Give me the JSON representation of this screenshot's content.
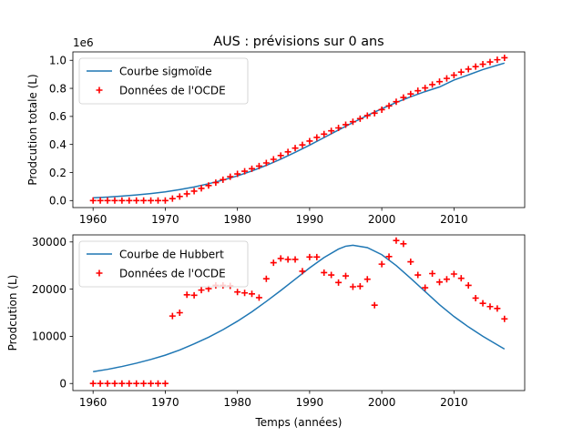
{
  "figure": {
    "title": "AUS : prévisions sur 0 ans",
    "xlabel": "Temps (années)"
  },
  "chart_data": [
    {
      "type": "line",
      "title": "AUS : prévisions sur 0 ans",
      "xlabel": "",
      "ylabel": "Prodcution totale (L)",
      "y_offset_label": "1e6",
      "xlim": [
        1957.2,
        2019.8
      ],
      "ylim": [
        -0.05,
        1.06
      ],
      "x_ticks": [
        1960,
        1970,
        1980,
        1990,
        2000,
        2010
      ],
      "x_tick_labels": [
        "1960",
        "1970",
        "1980",
        "1990",
        "2000",
        "2010"
      ],
      "y_ticks": [
        0.0,
        0.2,
        0.4,
        0.6,
        0.8,
        1.0
      ],
      "y_tick_labels": [
        "0.0",
        "0.2",
        "0.4",
        "0.6",
        "0.8",
        "1.0"
      ],
      "grid": false,
      "legend_position": "top-left",
      "series": [
        {
          "name": "Courbe sigmoïde",
          "kind": "line",
          "color": "#1f77b4",
          "x": [
            1960,
            1962,
            1964,
            1966,
            1968,
            1970,
            1972,
            1974,
            1976,
            1978,
            1980,
            1982,
            1984,
            1986,
            1988,
            1990,
            1992,
            1994,
            1996,
            1998,
            2000,
            2002,
            2004,
            2006,
            2008,
            2010,
            2012,
            2014,
            2016,
            2017
          ],
          "y": [
            0.02,
            0.025,
            0.032,
            0.04,
            0.05,
            0.062,
            0.078,
            0.097,
            0.12,
            0.146,
            0.176,
            0.211,
            0.251,
            0.295,
            0.344,
            0.395,
            0.449,
            0.503,
            0.556,
            0.607,
            0.655,
            0.699,
            0.74,
            0.777,
            0.81,
            0.859,
            0.896,
            0.934,
            0.965,
            0.98
          ]
        },
        {
          "name": "Données de l'OCDE",
          "kind": "scatter",
          "marker": "+",
          "color": "#ff0000",
          "x": [
            1960,
            1961,
            1962,
            1963,
            1964,
            1965,
            1966,
            1967,
            1968,
            1969,
            1970,
            1971,
            1972,
            1973,
            1974,
            1975,
            1976,
            1977,
            1978,
            1979,
            1980,
            1981,
            1982,
            1983,
            1984,
            1985,
            1986,
            1987,
            1988,
            1989,
            1990,
            1991,
            1992,
            1993,
            1994,
            1995,
            1996,
            1997,
            1998,
            1999,
            2000,
            2001,
            2002,
            2003,
            2004,
            2005,
            2006,
            2007,
            2008,
            2009,
            2010,
            2011,
            2012,
            2013,
            2014,
            2015,
            2016,
            2017
          ],
          "y": [
            0.0,
            0.0,
            0.0,
            0.0,
            0.0,
            0.0,
            0.0,
            0.0,
            0.0,
            0.0,
            0.0,
            0.014,
            0.029,
            0.048,
            0.067,
            0.087,
            0.107,
            0.128,
            0.149,
            0.17,
            0.19,
            0.209,
            0.227,
            0.246,
            0.268,
            0.294,
            0.321,
            0.347,
            0.374,
            0.397,
            0.424,
            0.45,
            0.474,
            0.497,
            0.518,
            0.541,
            0.562,
            0.584,
            0.606,
            0.623,
            0.648,
            0.675,
            0.705,
            0.735,
            0.76,
            0.783,
            0.803,
            0.827,
            0.848,
            0.871,
            0.894,
            0.916,
            0.937,
            0.955,
            0.972,
            0.988,
            1.004,
            1.018
          ]
        }
      ]
    },
    {
      "type": "line",
      "title": "",
      "xlabel": "Temps (années)",
      "ylabel": "Prodcution (L)",
      "xlim": [
        1957.2,
        2019.8
      ],
      "ylim": [
        -1500,
        31500
      ],
      "x_ticks": [
        1960,
        1970,
        1980,
        1990,
        2000,
        2010
      ],
      "x_tick_labels": [
        "1960",
        "1970",
        "1980",
        "1990",
        "2000",
        "2010"
      ],
      "y_ticks": [
        0,
        10000,
        20000,
        30000
      ],
      "y_tick_labels": [
        "0",
        "10000",
        "20000",
        "30000"
      ],
      "grid": false,
      "legend_position": "top-left",
      "series": [
        {
          "name": "Courbe de Hubbert",
          "kind": "line",
          "color": "#1f77b4",
          "x": [
            1960,
            1962,
            1964,
            1966,
            1968,
            1970,
            1972,
            1974,
            1976,
            1978,
            1980,
            1982,
            1984,
            1986,
            1988,
            1990,
            1992,
            1994,
            1995,
            1996,
            1998,
            2000,
            2002,
            2004,
            2006,
            2008,
            2010,
            2012,
            2014,
            2016,
            2017
          ],
          "y": [
            2500,
            3000,
            3600,
            4300,
            5100,
            6000,
            7100,
            8400,
            9800,
            11400,
            13200,
            15200,
            17400,
            19700,
            22100,
            24500,
            26700,
            28500,
            29100,
            29300,
            28800,
            27300,
            25000,
            22300,
            19500,
            16700,
            14200,
            12000,
            10000,
            8200,
            7300
          ]
        },
        {
          "name": "Données de l'OCDE",
          "kind": "scatter",
          "marker": "+",
          "color": "#ff0000",
          "x": [
            1960,
            1961,
            1962,
            1963,
            1964,
            1965,
            1966,
            1967,
            1968,
            1969,
            1970,
            1971,
            1972,
            1973,
            1974,
            1975,
            1976,
            1977,
            1978,
            1979,
            1980,
            1981,
            1982,
            1983,
            1984,
            1985,
            1986,
            1987,
            1988,
            1989,
            1990,
            1991,
            1992,
            1993,
            1994,
            1995,
            1996,
            1997,
            1998,
            1999,
            2000,
            2001,
            2002,
            2003,
            2004,
            2005,
            2006,
            2007,
            2008,
            2009,
            2010,
            2011,
            2012,
            2013,
            2014,
            2015,
            2016,
            2017
          ],
          "y": [
            0,
            0,
            0,
            0,
            0,
            0,
            0,
            0,
            0,
            0,
            0,
            14300,
            15000,
            18800,
            18700,
            19800,
            20100,
            20800,
            20800,
            20700,
            19400,
            19200,
            19000,
            18200,
            22200,
            25600,
            26500,
            26300,
            26300,
            23800,
            26800,
            26800,
            23500,
            23000,
            21400,
            22800,
            20500,
            20600,
            22100,
            16600,
            25300,
            26900,
            30300,
            29600,
            25800,
            23000,
            20300,
            23300,
            21500,
            22100,
            23200,
            22300,
            20800,
            18100,
            17000,
            16300,
            15900,
            13700
          ]
        }
      ]
    }
  ]
}
